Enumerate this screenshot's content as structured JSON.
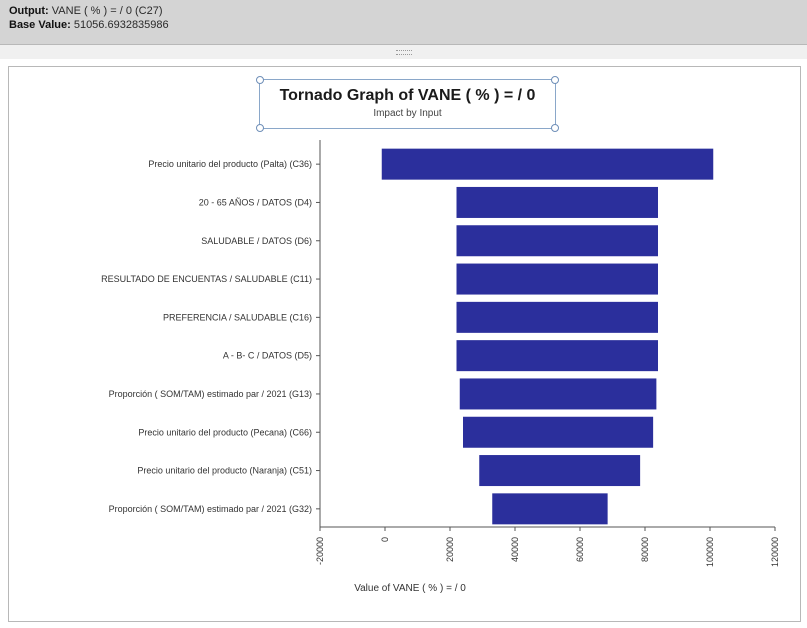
{
  "header": {
    "output_label": "Output:",
    "output_value": "VANE  ( % ) = / 0  (C27)",
    "base_label": "Base Value:",
    "base_value": "51056.6932835986"
  },
  "chart_data": {
    "type": "bar",
    "orientation": "horizontal",
    "title": "Tornado Graph of VANE  ( % ) = / 0",
    "subtitle": "Impact by Input",
    "xlabel": "Value of VANE  ( % ) = / 0",
    "xlim": [
      -20000,
      120000
    ],
    "xticks": [
      -20000,
      0,
      20000,
      40000,
      60000,
      80000,
      100000,
      120000
    ],
    "color": "#2b2f9c",
    "categories": [
      "Precio unitario del producto (Palta) (C36)",
      "20 - 65 AÑOS / DATOS (D4)",
      "SALUDABLE / DATOS (D6)",
      "RESULTADO DE  ENCUENTAS / SALUDABLE (C11)",
      "PREFERENCIA / SALUDABLE (C16)",
      "A - B- C / DATOS (D5)",
      "Proporción ( SOM/TAM) estimado par / 2021 (G13)",
      "Precio unitario del producto (Pecana) (C66)",
      "Precio unitario del producto (Naranja) (C51)",
      "Proporción ( SOM/TAM) estimado par / 2021 (G32)"
    ],
    "low": [
      -1000,
      22000,
      22000,
      22000,
      22000,
      22000,
      23000,
      24000,
      29000,
      33000
    ],
    "high": [
      101000,
      84000,
      84000,
      84000,
      84000,
      84000,
      83500,
      82500,
      78500,
      68500
    ]
  }
}
